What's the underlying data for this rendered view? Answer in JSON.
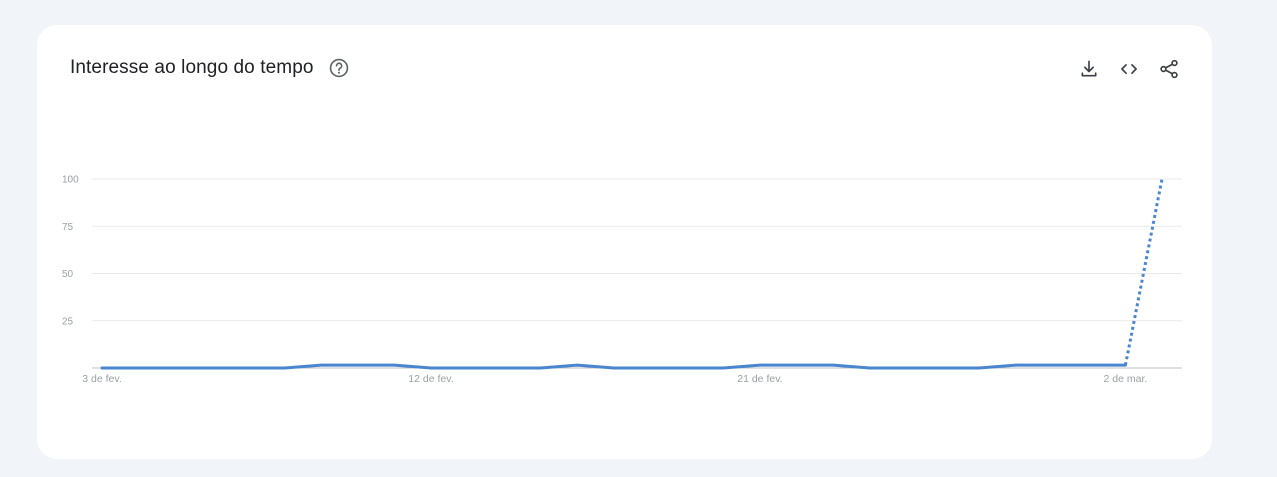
{
  "card": {
    "title": "Interesse ao longo do tempo",
    "help_icon": "help-circle-icon",
    "actions": [
      {
        "name": "download-icon",
        "label": "Download"
      },
      {
        "name": "embed-icon",
        "label": "Embed"
      },
      {
        "name": "share-icon",
        "label": "Share"
      }
    ]
  },
  "colors": {
    "series": "#4a86cf",
    "grid": "#e8eaed",
    "axis": "#bdc1c6",
    "tick_text": "#9aa0a6"
  },
  "chart_data": {
    "type": "line",
    "title": "Interesse ao longo do tempo",
    "xlabel": "",
    "ylabel": "",
    "ylim": [
      0,
      100
    ],
    "yticks": [
      25,
      50,
      75,
      100
    ],
    "grid": true,
    "x_tick_labels": [
      "3 de fev.",
      "12 de fev.",
      "21 de fev.",
      "2 de mar."
    ],
    "x": [
      "3 de fev.",
      "4 de fev.",
      "5 de fev.",
      "6 de fev.",
      "7 de fev.",
      "8 de fev.",
      "9 de fev.",
      "10 de fev.",
      "11 de fev.",
      "12 de fev.",
      "13 de fev.",
      "14 de fev.",
      "15 de fev.",
      "16 de fev.",
      "17 de fev.",
      "18 de fev.",
      "19 de fev.",
      "20 de fev.",
      "21 de fev.",
      "22 de fev.",
      "23 de fev.",
      "24 de fev.",
      "25 de fev.",
      "26 de fev.",
      "27 de fev.",
      "28 de fev.",
      "29 de fev.",
      "1 de mar.",
      "2 de mar.",
      "3 de mar."
    ],
    "series": [
      {
        "values": [
          0,
          0,
          0,
          0,
          0,
          0,
          1,
          1,
          1,
          0,
          0,
          0,
          0,
          1,
          0,
          0,
          0,
          0,
          1,
          1,
          1,
          0,
          0,
          0,
          0,
          1,
          1,
          1,
          1,
          100
        ],
        "partial_from_index": 28
      }
    ]
  }
}
